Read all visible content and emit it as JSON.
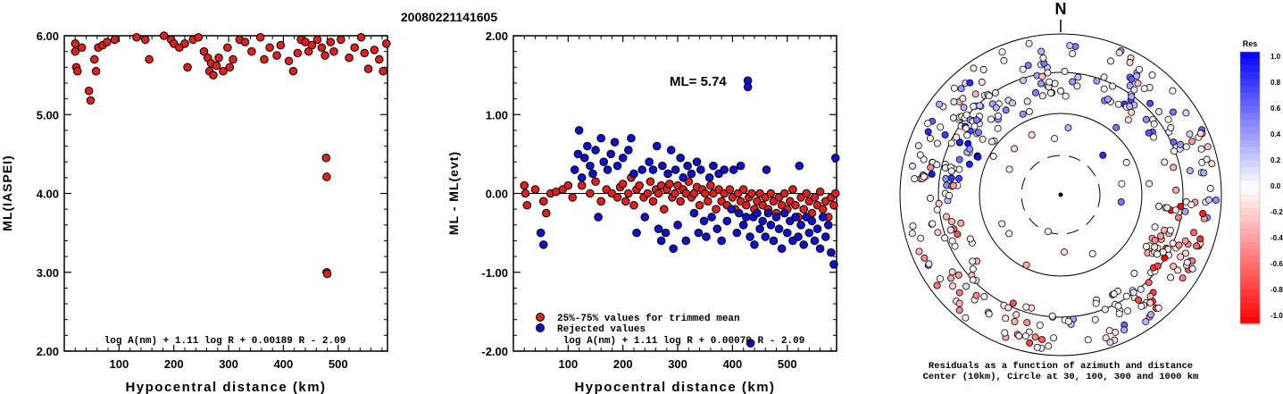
{
  "title": "20080221141605",
  "chart_data": [
    {
      "type": "scatter",
      "ylabel": "ML(IASPEI)",
      "xlabel": "Hypocentral distance (km)",
      "xlim": [
        0,
        590
      ],
      "ylim": [
        2.0,
        6.0
      ],
      "x_ticks": [
        "100",
        "200",
        "300",
        "400",
        "500"
      ],
      "y_ticks": [
        "2.00",
        "3.00",
        "4.00",
        "5.00",
        "6.00"
      ],
      "formula": "log A(nm) + 1.11 log R + 0.00189 R - 2.09",
      "series": [
        {
          "color": "#dd2020",
          "points": [
            [
              20,
              5.9
            ],
            [
              20,
              5.8
            ],
            [
              22,
              5.6
            ],
            [
              24,
              5.55
            ],
            [
              32,
              5.85
            ],
            [
              45,
              5.3
            ],
            [
              48,
              5.18
            ],
            [
              55,
              5.7
            ],
            [
              58,
              5.55
            ],
            [
              62,
              5.85
            ],
            [
              70,
              5.88
            ],
            [
              78,
              5.92
            ],
            [
              92,
              5.95
            ],
            [
              132,
              5.98
            ],
            [
              148,
              5.95
            ],
            [
              155,
              5.7
            ],
            [
              182,
              6.0
            ],
            [
              195,
              5.95
            ],
            [
              200,
              5.9
            ],
            [
              210,
              5.85
            ],
            [
              220,
              5.9
            ],
            [
              225,
              5.6
            ],
            [
              235,
              5.95
            ],
            [
              245,
              5.98
            ],
            [
              255,
              5.8
            ],
            [
              262,
              5.72
            ],
            [
              265,
              5.55
            ],
            [
              268,
              5.65
            ],
            [
              272,
              5.5
            ],
            [
              278,
              5.62
            ],
            [
              282,
              5.72
            ],
            [
              290,
              5.55
            ],
            [
              298,
              5.85
            ],
            [
              302,
              5.6
            ],
            [
              308,
              5.7
            ],
            [
              320,
              5.95
            ],
            [
              330,
              5.92
            ],
            [
              342,
              5.8
            ],
            [
              358,
              5.98
            ],
            [
              365,
              5.7
            ],
            [
              375,
              5.85
            ],
            [
              388,
              5.75
            ],
            [
              395,
              5.88
            ],
            [
              410,
              5.68
            ],
            [
              418,
              5.55
            ],
            [
              426,
              5.78
            ],
            [
              432,
              5.95
            ],
            [
              440,
              5.92
            ],
            [
              446,
              5.8
            ],
            [
              452,
              5.88
            ],
            [
              462,
              5.95
            ],
            [
              470,
              5.85
            ],
            [
              476,
              5.75
            ],
            [
              478,
              4.45
            ],
            [
              479,
              4.21
            ],
            [
              479,
              3.0
            ],
            [
              480,
              2.98
            ],
            [
              486,
              5.92
            ],
            [
              492,
              5.8
            ],
            [
              505,
              5.95
            ],
            [
              520,
              5.72
            ],
            [
              530,
              5.85
            ],
            [
              542,
              5.98
            ],
            [
              548,
              5.78
            ],
            [
              555,
              5.58
            ],
            [
              566,
              5.82
            ],
            [
              575,
              5.7
            ],
            [
              582,
              5.55
            ],
            [
              588,
              5.9
            ]
          ]
        }
      ]
    },
    {
      "type": "scatter",
      "ylabel": "ML - ML(evt)",
      "xlabel": "Hypocentral distance (km)",
      "xlim": [
        0,
        590
      ],
      "ylim": [
        -2.0,
        2.0
      ],
      "x_ticks": [
        "100",
        "200",
        "300",
        "400",
        "500"
      ],
      "y_ticks": [
        "-2.00",
        "-1.00",
        "0.00",
        "1.00",
        "2.00"
      ],
      "annotation": "ML= 5.74",
      "formula": "log A(nm) + 1.11 log R + 0.00070 R - 2.09",
      "legend": [
        {
          "label": "25%-75% values for trimmed mean",
          "color": "#dd2020"
        },
        {
          "label": "Rejected values",
          "color": "#1010cc"
        }
      ],
      "series": [
        {
          "name": "25%-75% values for trimmed mean",
          "color": "#dd2020",
          "points": [
            [
              20,
              0.1
            ],
            [
              22,
              0.0
            ],
            [
              25,
              -0.15
            ],
            [
              40,
              0.05
            ],
            [
              55,
              -0.1
            ],
            [
              60,
              -0.25
            ],
            [
              68,
              0.0
            ],
            [
              78,
              0.02
            ],
            [
              90,
              0.05
            ],
            [
              100,
              0.1
            ],
            [
              108,
              -0.05
            ],
            [
              125,
              0.1
            ],
            [
              140,
              0.0
            ],
            [
              150,
              0.15
            ],
            [
              160,
              -0.1
            ],
            [
              170,
              0.05
            ],
            [
              180,
              0.0
            ],
            [
              190,
              -0.05
            ],
            [
              195,
              0.08
            ],
            [
              200,
              0.12
            ],
            [
              205,
              -0.1
            ],
            [
              210,
              0.0
            ],
            [
              215,
              0.2
            ],
            [
              220,
              -0.15
            ],
            [
              225,
              0.05
            ],
            [
              230,
              0.1
            ],
            [
              238,
              -0.05
            ],
            [
              245,
              0.0
            ],
            [
              250,
              0.15
            ],
            [
              255,
              -0.1
            ],
            [
              260,
              0.05
            ],
            [
              265,
              0.0
            ],
            [
              270,
              0.1
            ],
            [
              275,
              -0.2
            ],
            [
              280,
              0.05
            ],
            [
              285,
              0.12
            ],
            [
              290,
              -0.05
            ],
            [
              295,
              0.0
            ],
            [
              300,
              0.1
            ],
            [
              305,
              -0.1
            ],
            [
              310,
              0.05
            ],
            [
              315,
              0.0
            ],
            [
              320,
              0.15
            ],
            [
              325,
              -0.05
            ],
            [
              330,
              0.0
            ],
            [
              335,
              0.08
            ],
            [
              340,
              -0.15
            ],
            [
              345,
              0.05
            ],
            [
              350,
              0.0
            ],
            [
              355,
              -0.1
            ],
            [
              360,
              0.1
            ],
            [
              365,
              0.0
            ],
            [
              370,
              -0.2
            ],
            [
              375,
              0.05
            ],
            [
              380,
              -0.1
            ],
            [
              385,
              0.0
            ],
            [
              390,
              -0.15
            ],
            [
              395,
              0.05
            ],
            [
              400,
              -0.05
            ],
            [
              405,
              -0.2
            ],
            [
              410,
              0.0
            ],
            [
              415,
              -0.1
            ],
            [
              420,
              0.05
            ],
            [
              425,
              -0.15
            ],
            [
              430,
              -0.05
            ],
            [
              435,
              0.0
            ],
            [
              440,
              -0.2
            ],
            [
              445,
              -0.1
            ],
            [
              450,
              0.0
            ],
            [
              455,
              -0.15
            ],
            [
              460,
              -0.05
            ],
            [
              465,
              -0.2
            ],
            [
              470,
              0.0
            ],
            [
              475,
              -0.1
            ],
            [
              480,
              -0.25
            ],
            [
              485,
              -0.05
            ],
            [
              490,
              -0.15
            ],
            [
              495,
              0.0
            ],
            [
              500,
              -0.2
            ],
            [
              505,
              -0.1
            ],
            [
              510,
              0.05
            ],
            [
              515,
              -0.15
            ],
            [
              520,
              -0.3
            ],
            [
              525,
              -0.05
            ],
            [
              530,
              -0.2
            ],
            [
              535,
              0.0
            ],
            [
              540,
              -0.1
            ],
            [
              545,
              -0.25
            ],
            [
              550,
              -0.05
            ],
            [
              555,
              -0.15
            ],
            [
              560,
              0.02
            ],
            [
              565,
              -0.2
            ],
            [
              570,
              -0.1
            ],
            [
              575,
              -0.3
            ],
            [
              580,
              -0.05
            ],
            [
              585,
              -0.15
            ],
            [
              588,
              0.0
            ]
          ]
        },
        {
          "name": "Rejected values",
          "color": "#1010cc",
          "points": [
            [
              50,
              -0.5
            ],
            [
              55,
              -0.65
            ],
            [
              112,
              0.3
            ],
            [
              118,
              0.5
            ],
            [
              120,
              0.8
            ],
            [
              125,
              0.2
            ],
            [
              130,
              0.45
            ],
            [
              135,
              0.6
            ],
            [
              140,
              0.35
            ],
            [
              145,
              0.25
            ],
            [
              150,
              0.55
            ],
            [
              155,
              -0.3
            ],
            [
              160,
              0.7
            ],
            [
              165,
              0.4
            ],
            [
              172,
              0.3
            ],
            [
              178,
              0.5
            ],
            [
              185,
              0.65
            ],
            [
              190,
              0.35
            ],
            [
              200,
              0.45
            ],
            [
              210,
              0.55
            ],
            [
              215,
              0.7
            ],
            [
              220,
              0.25
            ],
            [
              225,
              -0.5
            ],
            [
              235,
              0.3
            ],
            [
              240,
              -0.3
            ],
            [
              248,
              0.4
            ],
            [
              255,
              0.3
            ],
            [
              262,
              0.6
            ],
            [
              265,
              -0.45
            ],
            [
              270,
              -0.6
            ],
            [
              272,
              0.35
            ],
            [
              278,
              -0.5
            ],
            [
              282,
              0.25
            ],
            [
              288,
              0.55
            ],
            [
              292,
              -0.7
            ],
            [
              296,
              0.3
            ],
            [
              300,
              -0.4
            ],
            [
              305,
              0.45
            ],
            [
              310,
              0.2
            ],
            [
              315,
              -0.6
            ],
            [
              318,
              0.35
            ],
            [
              325,
              0.25
            ],
            [
              330,
              -0.25
            ],
            [
              335,
              0.4
            ],
            [
              338,
              -0.5
            ],
            [
              342,
              0.3
            ],
            [
              348,
              -0.35
            ],
            [
              352,
              -0.55
            ],
            [
              358,
              0.2
            ],
            [
              362,
              -0.3
            ],
            [
              365,
              0.35
            ],
            [
              372,
              -0.45
            ],
            [
              375,
              0.25
            ],
            [
              380,
              -0.6
            ],
            [
              385,
              0.3
            ],
            [
              390,
              -0.35
            ],
            [
              398,
              -0.2
            ],
            [
              402,
              0.3
            ],
            [
              408,
              -0.5
            ],
            [
              412,
              -0.25
            ],
            [
              415,
              0.35
            ],
            [
              420,
              -0.4
            ],
            [
              425,
              -0.3
            ],
            [
              428,
              1.43
            ],
            [
              428,
              1.35
            ],
            [
              432,
              -0.55
            ],
            [
              438,
              -0.3
            ],
            [
              440,
              -0.65
            ],
            [
              445,
              -0.25
            ],
            [
              450,
              -0.45
            ],
            [
              455,
              -0.35
            ],
            [
              460,
              -0.55
            ],
            [
              462,
              0.3
            ],
            [
              465,
              -0.25
            ],
            [
              470,
              -0.4
            ],
            [
              475,
              -0.6
            ],
            [
              480,
              -0.3
            ],
            [
              485,
              -0.45
            ],
            [
              490,
              -0.7
            ],
            [
              495,
              -0.25
            ],
            [
              500,
              -0.5
            ],
            [
              505,
              -0.35
            ],
            [
              510,
              -0.6
            ],
            [
              515,
              -0.3
            ],
            [
              520,
              -0.55
            ],
            [
              522,
              0.35
            ],
            [
              525,
              -0.4
            ],
            [
              530,
              -0.65
            ],
            [
              535,
              -0.3
            ],
            [
              540,
              -0.5
            ],
            [
              545,
              -0.35
            ],
            [
              550,
              -0.6
            ],
            [
              555,
              -0.45
            ],
            [
              560,
              -0.7
            ],
            [
              565,
              -0.3
            ],
            [
              570,
              -0.55
            ],
            [
              575,
              -0.4
            ],
            [
              580,
              -0.75
            ],
            [
              585,
              -0.9
            ],
            [
              588,
              0.45
            ],
            [
              433,
              -1.9
            ]
          ]
        }
      ]
    },
    {
      "type": "polar-scatter",
      "north_label": "N",
      "caption_line1": "Residuals as a function of azimuth and distance",
      "caption_line2": "Center (10km), Circle at 30, 100, 300 and 1000 km",
      "colorbar_title": "Res",
      "colorbar_ticks": [
        "1.0",
        "0.8",
        "0.6",
        "0.4",
        "0.2",
        "0.0",
        "-0.2",
        "-0.4",
        "-0.6",
        "-0.8",
        "-1.0"
      ]
    }
  ]
}
